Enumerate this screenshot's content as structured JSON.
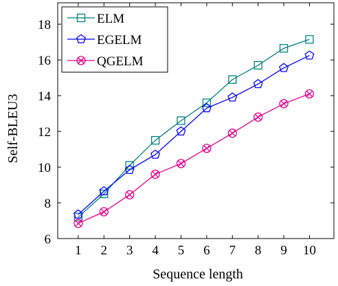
{
  "chart_data": {
    "type": "line",
    "xlabel": "Sequence length",
    "ylabel": "Self-BLEU3",
    "x": [
      1,
      2,
      3,
      4,
      5,
      6,
      7,
      8,
      9,
      10
    ],
    "xlim": [
      0.2,
      10.95
    ],
    "ylim": [
      6,
      19.2
    ],
    "xticks": [
      1,
      2,
      3,
      4,
      5,
      6,
      7,
      8,
      9,
      10
    ],
    "yticks": [
      6,
      8,
      10,
      12,
      14,
      16,
      18
    ],
    "grid": false,
    "legend_position": "top-left",
    "series": [
      {
        "name": "ELM",
        "color": "#008080",
        "marker": "square",
        "values": [
          7.2,
          8.5,
          10.1,
          11.5,
          12.6,
          13.6,
          14.9,
          15.7,
          16.65,
          17.15
        ]
      },
      {
        "name": "EGELM",
        "color": "#0000ff",
        "marker": "pentagon",
        "values": [
          7.35,
          8.65,
          9.85,
          10.7,
          12.0,
          13.3,
          13.9,
          14.65,
          15.55,
          16.25
        ]
      },
      {
        "name": "QGELM",
        "color": "#e6008c",
        "marker": "circle-x",
        "values": [
          6.85,
          7.5,
          8.45,
          9.6,
          10.2,
          11.05,
          11.9,
          12.8,
          13.55,
          14.1
        ]
      }
    ]
  }
}
